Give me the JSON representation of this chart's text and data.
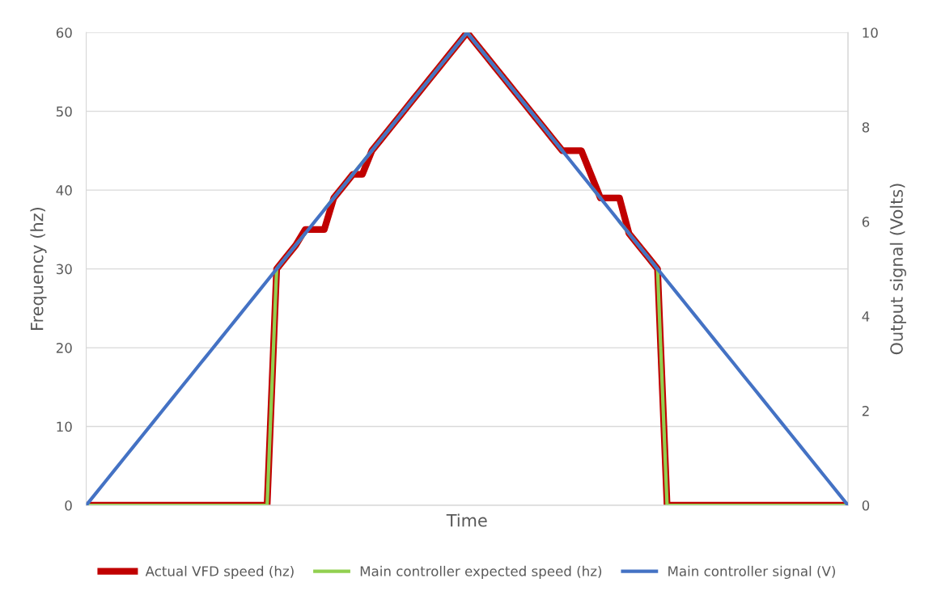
{
  "chart_data": {
    "type": "line",
    "xlabel": "Time",
    "ylabel": "Frequency (hz)",
    "y2label": "Output signal (Volts)",
    "categories": [
      null,
      null,
      null,
      null,
      null,
      null,
      null,
      null,
      null,
      null,
      null,
      null,
      null,
      null,
      null,
      null,
      null,
      null,
      null,
      null,
      null,
      null,
      null,
      null,
      null,
      null,
      null,
      null,
      null,
      null,
      null,
      null,
      null,
      null,
      null,
      null,
      null,
      null,
      null,
      null,
      null,
      null,
      null,
      null,
      null,
      null,
      null,
      null,
      null,
      null,
      null,
      null,
      null,
      null,
      null,
      null,
      null,
      null,
      null,
      null,
      null,
      null,
      null,
      null,
      null,
      null,
      null,
      null,
      null,
      null,
      null,
      null,
      null,
      null,
      null,
      null,
      null,
      null,
      null,
      null,
      null
    ],
    "ylim": [
      0,
      60
    ],
    "yticks": [
      0,
      10,
      20,
      30,
      40,
      50,
      60
    ],
    "y2lim": [
      0,
      10
    ],
    "y2ticks": [
      0,
      2,
      4,
      6,
      8,
      10
    ],
    "grid": "y",
    "legend": "bottom",
    "marker": "none",
    "line_style": "solid",
    "series": [
      {
        "name": "Actual VFD speed (hz)",
        "color": "#c00000",
        "values": [
          0,
          0,
          0,
          0,
          0,
          0,
          0,
          0,
          0,
          0,
          0,
          0,
          0,
          0,
          0,
          0,
          0,
          0,
          0,
          0,
          30,
          31.5,
          33,
          35,
          35,
          35,
          39,
          40.5,
          42,
          42,
          45,
          46.5,
          48,
          49.5,
          51,
          52.5,
          54,
          55.5,
          57,
          58.5,
          60,
          58.5,
          57,
          55.5,
          54,
          52.5,
          51,
          49.5,
          48,
          46.5,
          45,
          45,
          45,
          42,
          39,
          39,
          39,
          34.5,
          33,
          31.5,
          30,
          0,
          0,
          0,
          0,
          0,
          0,
          0,
          0,
          0,
          0,
          0,
          0,
          0,
          0,
          0,
          0,
          0,
          0,
          0,
          0
        ]
      },
      {
        "name": "Main controller expected speed (hz)",
        "color": "#92d050",
        "values": [
          0,
          0,
          0,
          0,
          0,
          0,
          0,
          0,
          0,
          0,
          0,
          0,
          0,
          0,
          0,
          0,
          0,
          0,
          0,
          0,
          30,
          31.5,
          33,
          34.5,
          null,
          37.5,
          39,
          40.5,
          42,
          43.5,
          45,
          46.5,
          48,
          49.5,
          51,
          52.5,
          54,
          55.5,
          57,
          58.5,
          60,
          58.5,
          57,
          55.5,
          54,
          52.5,
          51,
          49.5,
          48,
          46.5,
          45,
          null,
          null,
          40.5,
          39,
          null,
          36,
          34.5,
          33,
          31.5,
          30,
          0,
          0,
          0,
          0,
          0,
          0,
          0,
          0,
          0,
          0,
          0,
          0,
          0,
          0,
          0,
          0,
          0,
          0,
          0,
          0
        ]
      },
      {
        "name": "Main controller signal (V)",
        "color": "#4472c4",
        "axis": "y2",
        "values": [
          0,
          0.25,
          0.5,
          0.75,
          1,
          1.25,
          1.5,
          1.75,
          2,
          2.25,
          2.5,
          2.75,
          3,
          3.25,
          3.5,
          3.75,
          4,
          4.25,
          4.5,
          4.75,
          5,
          5.25,
          5.5,
          5.75,
          6,
          6.25,
          6.5,
          6.75,
          7,
          7.25,
          7.5,
          7.75,
          8,
          8.25,
          8.5,
          8.75,
          9,
          9.25,
          9.5,
          9.75,
          10,
          9.75,
          9.5,
          9.25,
          9,
          8.75,
          8.5,
          8.25,
          8,
          7.75,
          7.5,
          7.25,
          7,
          6.75,
          6.5,
          6.25,
          6,
          5.75,
          5.5,
          5.25,
          5,
          4.75,
          4.5,
          4.25,
          4,
          3.75,
          3.5,
          3.25,
          3,
          2.75,
          2.5,
          2.25,
          2,
          1.75,
          1.5,
          1.25,
          1,
          0.75,
          0.5,
          0.25,
          0
        ]
      }
    ]
  }
}
